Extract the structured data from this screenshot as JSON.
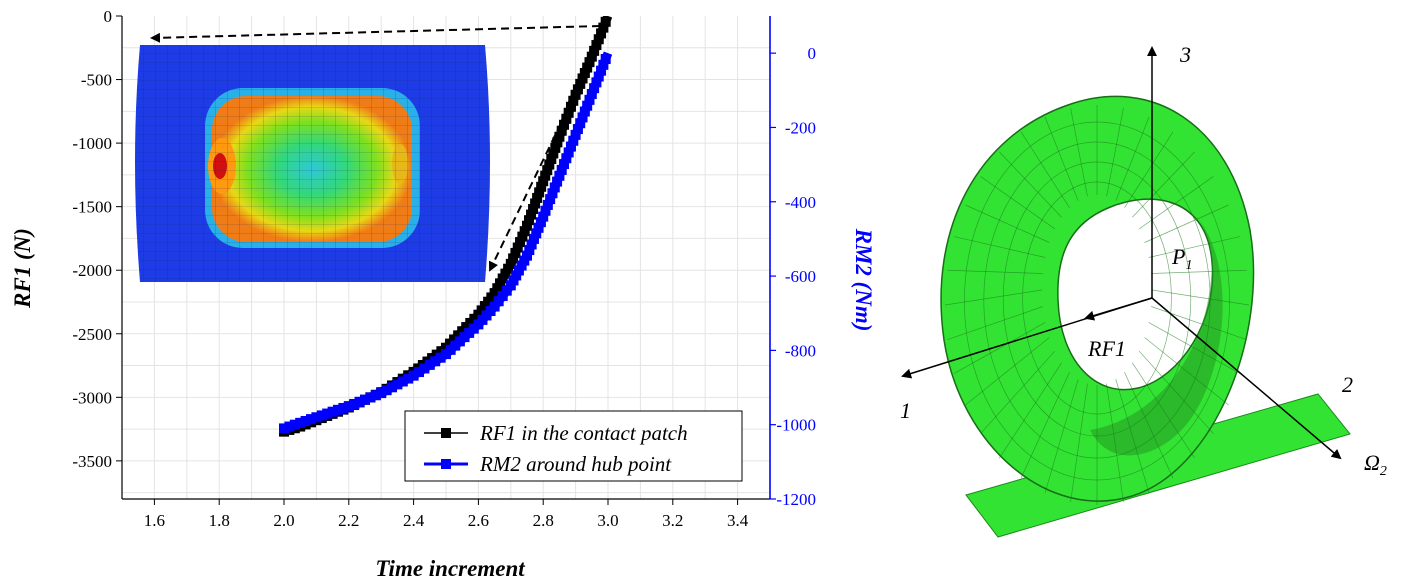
{
  "chart_data": {
    "type": "line",
    "xlabel": "Time increment",
    "ylabel": "RF1 (N)",
    "y2label": "RM2 (Nm)",
    "xlim": [
      1.5,
      3.5
    ],
    "ylim": [
      -3800,
      0
    ],
    "y2lim": [
      -1200,
      100
    ],
    "xticks": [
      "1.6",
      "1.8",
      "2.0",
      "2.2",
      "2.4",
      "2.6",
      "2.8",
      "3.0",
      "3.2",
      "3.4"
    ],
    "yticks": [
      "0",
      "-500",
      "-1000",
      "-1500",
      "-2000",
      "-2500",
      "-3000",
      "-3500"
    ],
    "y2ticks": [
      "0",
      "-200",
      "-400",
      "-600",
      "-800",
      "-1000",
      "-1200"
    ],
    "grid": true,
    "legend_position": "bottom-right",
    "series": [
      {
        "name": "RF1 in the contact patch",
        "axis": "left",
        "color": "#000000",
        "x": [
          2.0,
          2.05,
          2.1,
          2.2,
          2.3,
          2.4,
          2.5,
          2.6,
          2.65,
          2.7,
          2.75,
          2.8,
          2.85,
          2.9,
          2.95,
          3.0
        ],
        "y": [
          -3270,
          -3230,
          -3180,
          -3080,
          -2960,
          -2800,
          -2610,
          -2350,
          -2180,
          -1950,
          -1650,
          -1300,
          -950,
          -620,
          -320,
          0
        ]
      },
      {
        "name": "RM2 around hub point",
        "axis": "right",
        "color": "#0000ff",
        "x": [
          2.0,
          2.05,
          2.1,
          2.2,
          2.3,
          2.4,
          2.5,
          2.6,
          2.65,
          2.7,
          2.75,
          2.8,
          2.85,
          2.9,
          2.95,
          3.0
        ],
        "y": [
          -1010,
          -995,
          -980,
          -950,
          -915,
          -868,
          -810,
          -730,
          -682,
          -625,
          -545,
          -440,
          -330,
          -220,
          -110,
          0
        ]
      }
    ]
  },
  "diagram": {
    "labels": [
      "3",
      "P1",
      "RF1",
      "1",
      "2",
      "Ω2"
    ]
  },
  "colors": {
    "tire": "#33e333",
    "tire_dark": "#229922",
    "inset_blue": "#1e3ce6",
    "series_black": "#000000",
    "series_blue": "#0000ff"
  }
}
